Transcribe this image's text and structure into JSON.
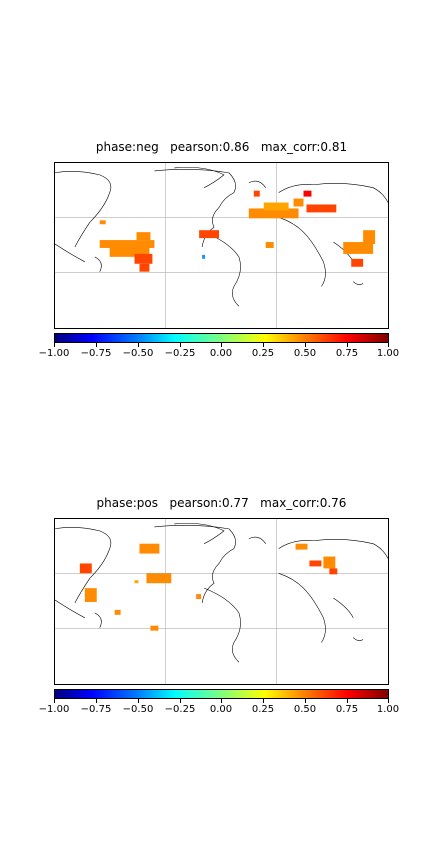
{
  "panels": [
    {
      "title": "phase:neg   pearson:0.86   max_corr:0.81",
      "colorbar": {
        "ticks": [
          "−1.00",
          "−0.75",
          "−0.50",
          "−0.25",
          "0.00",
          "0.25",
          "0.50",
          "0.75",
          "1.00"
        ],
        "range": [
          -1.0,
          1.0
        ],
        "colormap": "jet"
      },
      "highlight_colors": [
        "#ff8c00",
        "#ff4500",
        "#ffa500",
        "#ff0000"
      ]
    },
    {
      "title": "phase:pos   pearson:0.77   max_corr:0.76",
      "colorbar": {
        "ticks": [
          "−1.00",
          "−0.75",
          "−0.50",
          "−0.25",
          "0.00",
          "0.25",
          "0.50",
          "0.75",
          "1.00"
        ],
        "range": [
          -1.0,
          1.0
        ],
        "colormap": "jet"
      },
      "highlight_colors": [
        "#ff8c00",
        "#ff4500",
        "#ffa500",
        "#ff0000"
      ]
    }
  ]
}
